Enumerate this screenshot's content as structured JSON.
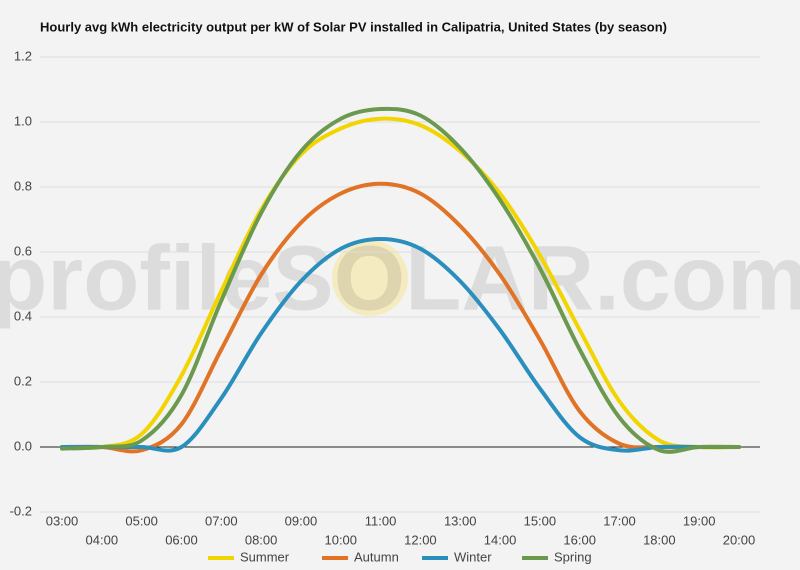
{
  "chart_data": {
    "type": "line",
    "title": "Hourly avg kWh electricity output per kW of Solar PV installed in Calipatria, United States (by season)",
    "watermark": "profileSOLAR.com",
    "categories": [
      "03:00",
      "04:00",
      "05:00",
      "06:00",
      "07:00",
      "08:00",
      "09:00",
      "10:00",
      "11:00",
      "12:00",
      "13:00",
      "14:00",
      "15:00",
      "16:00",
      "17:00",
      "18:00",
      "19:00",
      "20:00"
    ],
    "series": [
      {
        "name": "Summer",
        "color": "#f2d500",
        "values": [
          0,
          0,
          0.04,
          0.22,
          0.48,
          0.73,
          0.9,
          0.98,
          1.01,
          0.99,
          0.91,
          0.78,
          0.59,
          0.36,
          0.14,
          0.02,
          0,
          0
        ]
      },
      {
        "name": "Autumn",
        "color": "#e07325",
        "values": [
          0,
          0,
          -0.01,
          0.07,
          0.3,
          0.53,
          0.69,
          0.78,
          0.81,
          0.78,
          0.68,
          0.53,
          0.33,
          0.11,
          0.01,
          0,
          0,
          0
        ]
      },
      {
        "name": "Winter",
        "color": "#2a8fbd",
        "values": [
          0,
          0,
          0,
          0,
          0.15,
          0.35,
          0.51,
          0.61,
          0.64,
          0.61,
          0.51,
          0.36,
          0.18,
          0.03,
          -0.01,
          0,
          0,
          0
        ]
      },
      {
        "name": "Spring",
        "color": "#6b9a4f",
        "values": [
          -0.005,
          0,
          0.02,
          0.16,
          0.45,
          0.72,
          0.91,
          1.01,
          1.04,
          1.02,
          0.92,
          0.76,
          0.55,
          0.3,
          0.09,
          -0.01,
          0,
          0
        ]
      }
    ],
    "ylim": [
      -0.2,
      1.2
    ],
    "yticks": [
      -0.2,
      {
        "value": 0,
        "label": "0.0"
      },
      0.2,
      0.4,
      0.6,
      0.8,
      {
        "value": 1,
        "label": "1.0"
      },
      1.2
    ],
    "grid": true
  }
}
